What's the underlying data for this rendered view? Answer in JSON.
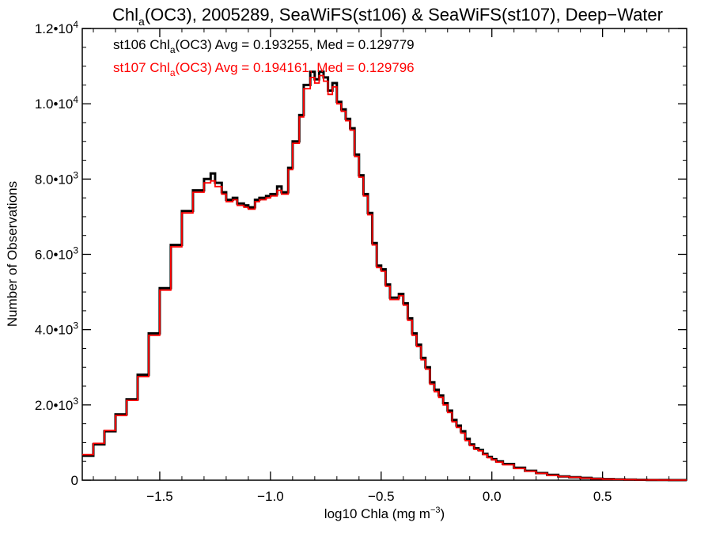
{
  "chart_data": {
    "type": "line",
    "title": {
      "pre": "Chl",
      "sub": "a",
      "post": "(OC3), 2005289, SeaWiFS(st106) & SeaWiFS(st107), Deep−Water"
    },
    "xlabel": {
      "pre": "log10 Chla (mg m",
      "sup": "−3",
      "post": ")"
    },
    "ylabel": "Number of Observations",
    "xlim": [
      -1.85,
      0.88
    ],
    "ylim": [
      0,
      12000
    ],
    "x_ticks": [
      {
        "value": -1.5,
        "label": "−1.5"
      },
      {
        "value": -1.0,
        "label": "−1.0"
      },
      {
        "value": -0.5,
        "label": "−0.5"
      },
      {
        "value": 0.0,
        "label": "0.0"
      },
      {
        "value": 0.5,
        "label": "0.5"
      }
    ],
    "y_ticks": [
      {
        "value": 0,
        "mant": "0",
        "exp": ""
      },
      {
        "value": 2000,
        "mant": "2.0•10",
        "exp": "3"
      },
      {
        "value": 4000,
        "mant": "4.0•10",
        "exp": "3"
      },
      {
        "value": 6000,
        "mant": "6.0•10",
        "exp": "3"
      },
      {
        "value": 8000,
        "mant": "8.0•10",
        "exp": "3"
      },
      {
        "value": 10000,
        "mant": "1.0•10",
        "exp": "4"
      },
      {
        "value": 12000,
        "mant": "1.2•10",
        "exp": "4"
      }
    ],
    "grid": false,
    "legend_position": "top-left",
    "series": [
      {
        "name": "st106",
        "color": "#000000",
        "legend": {
          "pre": "st106 Chl",
          "sub": "a",
          "post": "(OC3) Avg = 0.193255, Med = 0.129779"
        },
        "x": [
          -1.85,
          -1.8,
          -1.75,
          -1.7,
          -1.65,
          -1.6,
          -1.55,
          -1.5,
          -1.45,
          -1.4,
          -1.35,
          -1.3,
          -1.27,
          -1.25,
          -1.22,
          -1.2,
          -1.17,
          -1.15,
          -1.12,
          -1.1,
          -1.07,
          -1.05,
          -1.02,
          -1.0,
          -0.97,
          -0.95,
          -0.92,
          -0.9,
          -0.87,
          -0.85,
          -0.82,
          -0.8,
          -0.78,
          -0.76,
          -0.74,
          -0.72,
          -0.7,
          -0.68,
          -0.66,
          -0.64,
          -0.62,
          -0.6,
          -0.58,
          -0.56,
          -0.54,
          -0.52,
          -0.5,
          -0.48,
          -0.46,
          -0.44,
          -0.42,
          -0.4,
          -0.38,
          -0.36,
          -0.34,
          -0.32,
          -0.3,
          -0.28,
          -0.26,
          -0.24,
          -0.22,
          -0.2,
          -0.18,
          -0.16,
          -0.14,
          -0.12,
          -0.1,
          -0.08,
          -0.06,
          -0.04,
          -0.02,
          0.0,
          0.02,
          0.05,
          0.1,
          0.15,
          0.2,
          0.25,
          0.3,
          0.35,
          0.4,
          0.45,
          0.5,
          0.55,
          0.6,
          0.65,
          0.7,
          0.75,
          0.8,
          0.85,
          0.88
        ],
        "y": [
          650,
          950,
          1300,
          1750,
          2150,
          2800,
          3900,
          5100,
          6250,
          7150,
          7700,
          8000,
          8150,
          7900,
          7650,
          7450,
          7500,
          7350,
          7300,
          7250,
          7450,
          7500,
          7550,
          7600,
          7800,
          7650,
          8300,
          9000,
          9700,
          10500,
          10850,
          10650,
          10850,
          10700,
          10350,
          10550,
          10050,
          9850,
          9600,
          9350,
          8650,
          8100,
          7600,
          7100,
          6300,
          5700,
          5600,
          5200,
          4850,
          4850,
          4950,
          4700,
          4300,
          3900,
          3600,
          3250,
          3000,
          2600,
          2400,
          2250,
          2050,
          1850,
          1600,
          1450,
          1300,
          1100,
          950,
          850,
          800,
          700,
          620,
          560,
          500,
          430,
          330,
          250,
          190,
          140,
          100,
          80,
          60,
          40,
          30,
          22,
          15,
          10,
          7,
          5,
          3,
          2,
          2
        ]
      },
      {
        "name": "st107",
        "color": "#ff0000",
        "legend": {
          "pre": "st107 Chl",
          "sub": "a",
          "post": "(OC3) Avg = 0.194161, Med = 0.129796"
        },
        "x": [
          -1.85,
          -1.8,
          -1.75,
          -1.7,
          -1.65,
          -1.6,
          -1.55,
          -1.5,
          -1.45,
          -1.4,
          -1.35,
          -1.3,
          -1.27,
          -1.25,
          -1.22,
          -1.2,
          -1.17,
          -1.15,
          -1.12,
          -1.1,
          -1.07,
          -1.05,
          -1.02,
          -1.0,
          -0.97,
          -0.95,
          -0.92,
          -0.9,
          -0.87,
          -0.85,
          -0.82,
          -0.8,
          -0.78,
          -0.76,
          -0.74,
          -0.72,
          -0.7,
          -0.68,
          -0.66,
          -0.64,
          -0.62,
          -0.6,
          -0.58,
          -0.56,
          -0.54,
          -0.52,
          -0.5,
          -0.48,
          -0.46,
          -0.44,
          -0.42,
          -0.4,
          -0.38,
          -0.36,
          -0.34,
          -0.32,
          -0.3,
          -0.28,
          -0.26,
          -0.24,
          -0.22,
          -0.2,
          -0.18,
          -0.16,
          -0.14,
          -0.12,
          -0.1,
          -0.08,
          -0.06,
          -0.04,
          -0.02,
          0.0,
          0.02,
          0.05,
          0.1,
          0.15,
          0.2,
          0.25,
          0.3,
          0.35,
          0.4,
          0.45,
          0.5,
          0.55,
          0.6,
          0.65,
          0.7,
          0.75,
          0.8,
          0.85,
          0.88
        ],
        "y": [
          680,
          980,
          1320,
          1720,
          2120,
          2750,
          3850,
          5050,
          6200,
          7100,
          7650,
          7900,
          7950,
          7800,
          7600,
          7400,
          7450,
          7300,
          7250,
          7200,
          7400,
          7450,
          7500,
          7550,
          7700,
          7600,
          8250,
          8950,
          9650,
          10400,
          10700,
          10550,
          10750,
          10600,
          10250,
          10450,
          10000,
          9800,
          9550,
          9300,
          8600,
          8050,
          7550,
          7050,
          6250,
          5650,
          5550,
          5150,
          4800,
          4800,
          4900,
          4650,
          4250,
          3850,
          3550,
          3200,
          2950,
          2550,
          2350,
          2200,
          2000,
          1800,
          1550,
          1400,
          1250,
          1050,
          920,
          820,
          780,
          680,
          600,
          540,
          480,
          410,
          310,
          240,
          180,
          130,
          95,
          75,
          55,
          38,
          28,
          20,
          14,
          9,
          6,
          4,
          3,
          2,
          2
        ]
      }
    ]
  }
}
